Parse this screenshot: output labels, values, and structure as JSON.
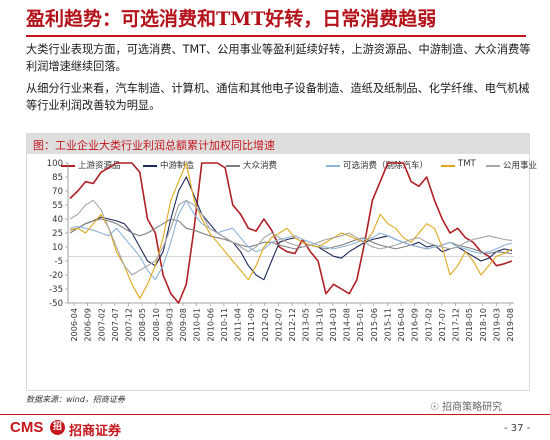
{
  "slide": {
    "title": "盈利趋势：可选消费和TMT好转，日常消费趋弱",
    "paragraph1": "大类行业表现方面，可选消费、TMT、公用事业等盈利延续好转，上游资源品、中游制造、大众消费等利润增速继续回落。",
    "paragraph2": "从细分行业来看，汽车制造、计算机、通信和其他电子设备制造、造纸及纸制品、化学纤维、电气机械等行业利润改善较为明显。",
    "source": "数据来源：wind，招商证券",
    "wechat": "招商策略研究",
    "page_number": "- 37 -",
    "logo_text": "CMS",
    "logo_mark": "招",
    "logo_cn": "招商证券"
  },
  "colors": {
    "accent": "#c4161c",
    "upstream": "#b01f24",
    "midstream": "#1f2a5c",
    "mass_consumer": "#7f7f7f",
    "discretionary": "#8eb4d8",
    "tmt": "#e0a81c",
    "utilities": "#a6a6a6"
  },
  "chart_data": {
    "type": "line",
    "title": "图：工业企业大类行业利润总额累计加权同比增速",
    "ylim": [
      -50,
      100
    ],
    "yticks": [
      100,
      85,
      70,
      55,
      40,
      25,
      10,
      -5,
      -20,
      -35,
      -50
    ],
    "y_tick_labels": [
      "100",
      "85",
      "70",
      "55",
      "40",
      "25",
      "10",
      "-5",
      "-20",
      "-35",
      "-50"
    ],
    "x_tick_labels": [
      "2006-04",
      "2006-09",
      "2007-02",
      "2007-07",
      "2007-12",
      "2008-05",
      "2008-10",
      "2009-03",
      "2009-08",
      "2010-01",
      "2010-06",
      "2010-11",
      "2011-04",
      "2011-09",
      "2012-02",
      "2012-07",
      "2012-12",
      "2013-05",
      "2013-10",
      "2014-03",
      "2014-08",
      "2015-01",
      "2015-06",
      "2015-11",
      "2016-04",
      "2016-09",
      "2017-02",
      "2017-07",
      "2017-12",
      "2018-05",
      "2018-10",
      "2019-03",
      "2019-08"
    ],
    "grid": false,
    "legend_position": "top",
    "series": [
      {
        "name": "上游资源品",
        "color": "#b01f24",
        "width": 1.6,
        "values": [
          62,
          70,
          80,
          78,
          90,
          95,
          100,
          100,
          100,
          90,
          40,
          25,
          -20,
          -40,
          -50,
          -30,
          30,
          100,
          100,
          100,
          95,
          55,
          45,
          30,
          27,
          40,
          28,
          10,
          5,
          3,
          18,
          5,
          -5,
          -40,
          -30,
          -35,
          -40,
          -25,
          15,
          60,
          80,
          100,
          100,
          100,
          80,
          75,
          85,
          60,
          40,
          25,
          30,
          20,
          15,
          5,
          0,
          -10,
          -8,
          -5
        ]
      },
      {
        "name": "中游制造",
        "color": "#1f2a5c",
        "width": 1.1,
        "values": [
          28,
          30,
          35,
          38,
          42,
          40,
          38,
          35,
          25,
          10,
          -5,
          -10,
          5,
          40,
          70,
          85,
          65,
          45,
          35,
          25,
          20,
          15,
          5,
          -10,
          -20,
          -25,
          -5,
          15,
          18,
          20,
          15,
          12,
          10,
          5,
          0,
          -2,
          5,
          10,
          15,
          18,
          20,
          22,
          18,
          15,
          12,
          15,
          10,
          12,
          5,
          8,
          10,
          5,
          0,
          -5,
          -2,
          5,
          8,
          6
        ]
      },
      {
        "name": "大众消费",
        "color": "#7f7f7f",
        "width": 1.1,
        "values": [
          25,
          30,
          35,
          38,
          40,
          38,
          35,
          30,
          25,
          22,
          25,
          30,
          35,
          40,
          38,
          30,
          28,
          25,
          22,
          20,
          18,
          15,
          12,
          10,
          12,
          15,
          15,
          12,
          10,
          8,
          10,
          12,
          10,
          8,
          10,
          12,
          15,
          18,
          20,
          15,
          12,
          10,
          8,
          10,
          12,
          10,
          8,
          10,
          12,
          15,
          12,
          10,
          8,
          5,
          3,
          5,
          4,
          3
        ]
      },
      {
        "name": "可选消费（剔除汽车）",
        "color": "#8eb4d8",
        "width": 1.1,
        "values": [
          30,
          32,
          30,
          28,
          25,
          22,
          30,
          20,
          10,
          0,
          -15,
          -25,
          -10,
          15,
          45,
          60,
          45,
          35,
          30,
          25,
          28,
          30,
          20,
          10,
          5,
          8,
          15,
          18,
          20,
          22,
          18,
          15,
          12,
          10,
          8,
          10,
          12,
          15,
          18,
          20,
          25,
          22,
          18,
          15,
          12,
          10,
          8,
          10,
          12,
          15,
          10,
          8,
          5,
          3,
          5,
          8,
          12,
          14
        ]
      },
      {
        "name": "TMT",
        "color": "#e0a81c",
        "width": 1.1,
        "values": [
          28,
          30,
          25,
          35,
          45,
          30,
          5,
          -10,
          -30,
          -45,
          -30,
          -10,
          20,
          60,
          80,
          100,
          60,
          40,
          25,
          15,
          5,
          -5,
          -15,
          -25,
          -10,
          10,
          20,
          25,
          30,
          20,
          15,
          12,
          10,
          15,
          20,
          25,
          22,
          18,
          15,
          25,
          45,
          35,
          30,
          20,
          15,
          25,
          35,
          30,
          10,
          -20,
          -10,
          5,
          -5,
          -20,
          -10,
          0,
          3,
          8
        ]
      },
      {
        "name": "公用事业",
        "color": "#a6a6a6",
        "width": 1.1,
        "values": [
          40,
          45,
          55,
          60,
          50,
          30,
          10,
          -10,
          -20,
          -15,
          -10,
          -5,
          10,
          30,
          55,
          60,
          55,
          45,
          30,
          25,
          20,
          15,
          10,
          5,
          10,
          20,
          25,
          20,
          15,
          12,
          10,
          12,
          15,
          18,
          20,
          22,
          25,
          20,
          15,
          10,
          8,
          10,
          12,
          15,
          18,
          20,
          15,
          12,
          10,
          8,
          10,
          15,
          18,
          20,
          22,
          20,
          18,
          17
        ]
      }
    ]
  }
}
